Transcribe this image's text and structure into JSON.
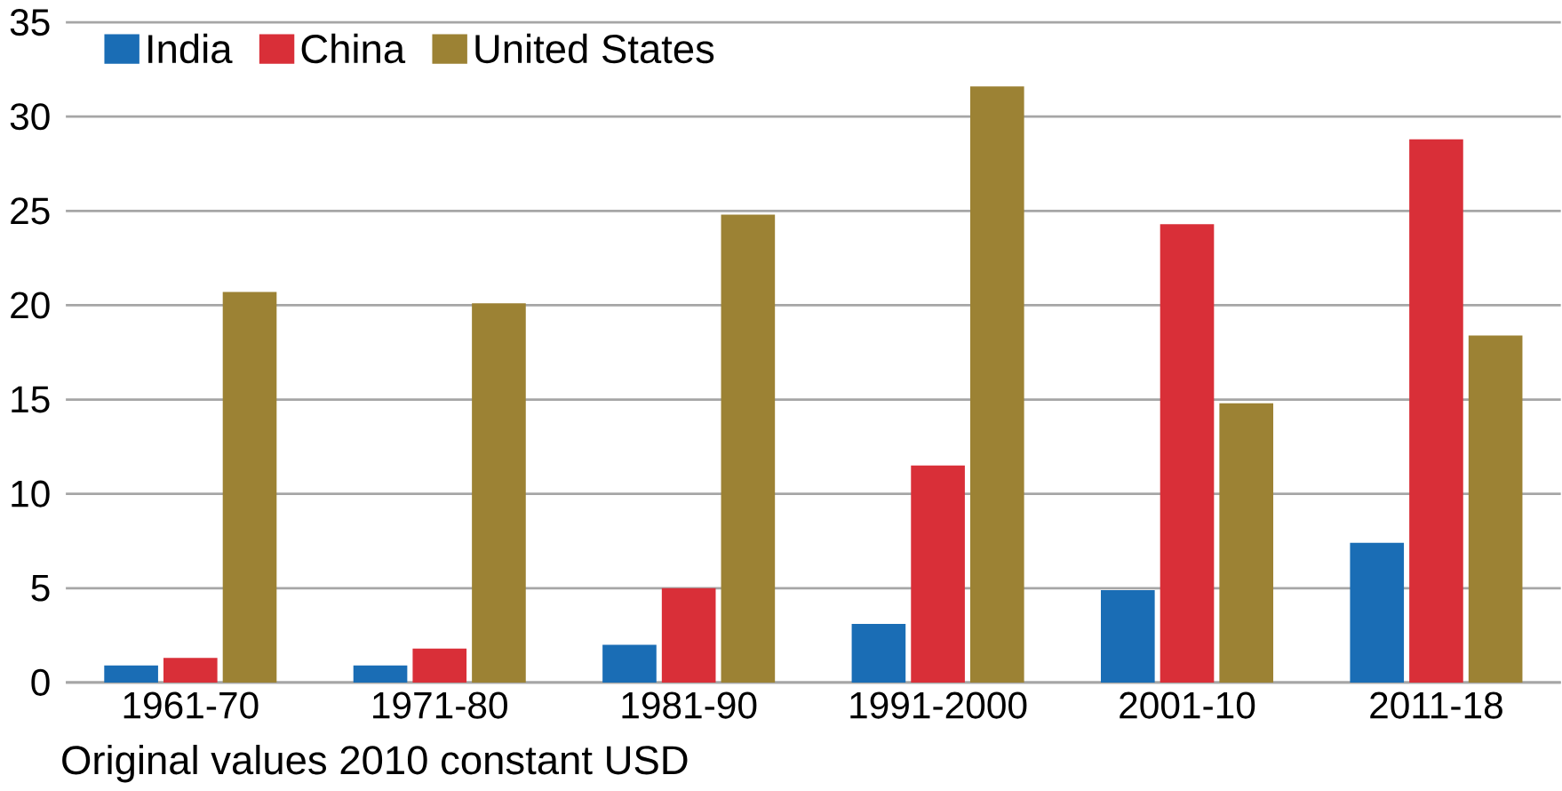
{
  "chart_data": {
    "type": "bar",
    "categories": [
      "1961-70",
      "1971-80",
      "1981-90",
      "1991-2000",
      "2001-10",
      "2011-18"
    ],
    "series": [
      {
        "name": "India",
        "color": "#1a6db5",
        "values": [
          0.9,
          0.9,
          2.0,
          3.1,
          4.9,
          7.4
        ]
      },
      {
        "name": "China",
        "color": "#d92f38",
        "values": [
          1.3,
          1.8,
          5.0,
          11.5,
          24.3,
          28.8
        ]
      },
      {
        "name": "United States",
        "color": "#9c8234",
        "values": [
          20.7,
          20.1,
          24.8,
          31.6,
          14.8,
          18.4
        ]
      }
    ],
    "ylim": [
      0,
      35
    ],
    "yticks": [
      0,
      5,
      10,
      15,
      20,
      25,
      30,
      35
    ],
    "grid": "y",
    "legend": "top left",
    "annotations": [
      "Original values 2010 constant USD"
    ]
  }
}
